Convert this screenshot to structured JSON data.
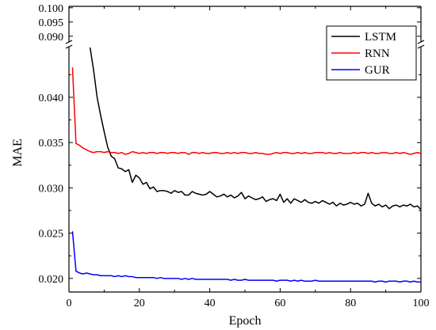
{
  "chart_data": {
    "type": "line",
    "xlabel": "Epoch",
    "ylabel": "MAE",
    "xlim": [
      0,
      100
    ],
    "ylim_lower": [
      0.0185,
      0.0455
    ],
    "ylim_upper": [
      0.088,
      0.1005
    ],
    "axis_break": true,
    "x_ticks": [
      "0",
      "20",
      "40",
      "60",
      "80",
      "100"
    ],
    "y_ticks_lower": [
      "0.020",
      "0.025",
      "0.030",
      "0.035",
      "0.040"
    ],
    "y_ticks_upper": [
      "0.090",
      "0.095",
      "0.100"
    ],
    "legend_position": "top-right",
    "grid": false,
    "series": [
      {
        "name": "LSTM",
        "color": "#000000",
        "x": [
          6,
          7,
          8,
          9,
          10,
          11,
          12,
          13,
          14,
          15,
          16,
          17,
          18,
          19,
          20,
          21,
          22,
          23,
          24,
          25,
          26,
          27,
          28,
          29,
          30,
          31,
          32,
          33,
          34,
          35,
          36,
          37,
          38,
          39,
          40,
          41,
          42,
          43,
          44,
          45,
          46,
          47,
          48,
          49,
          50,
          51,
          52,
          53,
          54,
          55,
          56,
          57,
          58,
          59,
          60,
          61,
          62,
          63,
          64,
          65,
          66,
          67,
          68,
          69,
          70,
          71,
          72,
          73,
          74,
          75,
          76,
          77,
          78,
          79,
          80,
          81,
          82,
          83,
          84,
          85,
          86,
          87,
          88,
          89,
          90,
          91,
          92,
          93,
          94,
          95,
          96,
          97,
          98,
          99,
          100
        ],
        "values": [
          0.0455,
          0.043,
          0.04,
          0.038,
          0.0362,
          0.0345,
          0.0335,
          0.0332,
          0.0322,
          0.0321,
          0.0318,
          0.032,
          0.0306,
          0.0314,
          0.0311,
          0.0304,
          0.0306,
          0.0299,
          0.0301,
          0.0296,
          0.0297,
          0.0297,
          0.0296,
          0.0294,
          0.0297,
          0.0295,
          0.0296,
          0.0292,
          0.0292,
          0.0296,
          0.0294,
          0.0293,
          0.0292,
          0.0293,
          0.0296,
          0.0293,
          0.029,
          0.0291,
          0.0293,
          0.029,
          0.0292,
          0.0289,
          0.0291,
          0.0295,
          0.0288,
          0.0291,
          0.0289,
          0.0287,
          0.0288,
          0.029,
          0.0285,
          0.0287,
          0.0288,
          0.0286,
          0.0293,
          0.0284,
          0.0288,
          0.0283,
          0.0288,
          0.0286,
          0.0284,
          0.0287,
          0.0284,
          0.0283,
          0.0285,
          0.0283,
          0.0286,
          0.0284,
          0.0282,
          0.0284,
          0.028,
          0.0283,
          0.0281,
          0.0282,
          0.0284,
          0.0282,
          0.0283,
          0.028,
          0.0282,
          0.0294,
          0.0283,
          0.028,
          0.0282,
          0.0279,
          0.0281,
          0.0277,
          0.028,
          0.0281,
          0.0279,
          0.0281,
          0.028,
          0.0282,
          0.0279,
          0.028,
          0.0276
        ]
      },
      {
        "name": "RNN",
        "color": "#ff0000",
        "x": [
          1,
          2,
          3,
          4,
          5,
          6,
          7,
          8,
          9,
          10,
          11,
          12,
          13,
          14,
          15,
          16,
          17,
          18,
          19,
          20,
          21,
          22,
          23,
          24,
          25,
          26,
          27,
          28,
          29,
          30,
          31,
          32,
          33,
          34,
          35,
          36,
          37,
          38,
          39,
          40,
          41,
          42,
          43,
          44,
          45,
          46,
          47,
          48,
          49,
          50,
          51,
          52,
          53,
          54,
          55,
          56,
          57,
          58,
          59,
          60,
          61,
          62,
          63,
          64,
          65,
          66,
          67,
          68,
          69,
          70,
          71,
          72,
          73,
          74,
          75,
          76,
          77,
          78,
          79,
          80,
          81,
          82,
          83,
          84,
          85,
          86,
          87,
          88,
          89,
          90,
          91,
          92,
          93,
          94,
          95,
          96,
          97,
          98,
          99,
          100
        ],
        "values": [
          0.0433,
          0.0349,
          0.0347,
          0.0344,
          0.0342,
          0.034,
          0.0339,
          0.034,
          0.034,
          0.0339,
          0.034,
          0.0339,
          0.0339,
          0.0338,
          0.0339,
          0.0337,
          0.0338,
          0.034,
          0.0339,
          0.0338,
          0.0339,
          0.0338,
          0.0339,
          0.0339,
          0.0338,
          0.0339,
          0.0339,
          0.0338,
          0.0339,
          0.0339,
          0.0338,
          0.0339,
          0.0339,
          0.0337,
          0.0339,
          0.0339,
          0.0338,
          0.0339,
          0.0338,
          0.0338,
          0.0339,
          0.0339,
          0.0338,
          0.0338,
          0.0339,
          0.0338,
          0.0339,
          0.0338,
          0.0339,
          0.0339,
          0.0338,
          0.0338,
          0.0339,
          0.0338,
          0.0338,
          0.0337,
          0.0337,
          0.0338,
          0.0339,
          0.0338,
          0.0339,
          0.0339,
          0.0338,
          0.0338,
          0.0339,
          0.0338,
          0.0339,
          0.0338,
          0.0338,
          0.0339,
          0.0339,
          0.0339,
          0.0338,
          0.0339,
          0.0338,
          0.0338,
          0.0339,
          0.0338,
          0.0338,
          0.0338,
          0.0339,
          0.0338,
          0.0339,
          0.0339,
          0.0338,
          0.0339,
          0.0338,
          0.0338,
          0.0339,
          0.0339,
          0.0338,
          0.0338,
          0.0339,
          0.0338,
          0.0339,
          0.0338,
          0.0337,
          0.0338,
          0.0339,
          0.0338
        ]
      },
      {
        "name": "GUR",
        "color": "#0000ff",
        "x": [
          1,
          2,
          3,
          4,
          5,
          6,
          7,
          8,
          9,
          10,
          11,
          12,
          13,
          14,
          15,
          16,
          17,
          18,
          19,
          20,
          21,
          22,
          23,
          24,
          25,
          26,
          27,
          28,
          29,
          30,
          31,
          32,
          33,
          34,
          35,
          36,
          37,
          38,
          39,
          40,
          41,
          42,
          43,
          44,
          45,
          46,
          47,
          48,
          49,
          50,
          51,
          52,
          53,
          54,
          55,
          56,
          57,
          58,
          59,
          60,
          61,
          62,
          63,
          64,
          65,
          66,
          67,
          68,
          69,
          70,
          71,
          72,
          73,
          74,
          75,
          76,
          77,
          78,
          79,
          80,
          81,
          82,
          83,
          84,
          85,
          86,
          87,
          88,
          89,
          90,
          91,
          92,
          93,
          94,
          95,
          96,
          97,
          98,
          99,
          100
        ],
        "values": [
          0.0252,
          0.0208,
          0.0206,
          0.0205,
          0.0206,
          0.0205,
          0.0204,
          0.0204,
          0.0203,
          0.0203,
          0.0203,
          0.0203,
          0.0202,
          0.0203,
          0.0202,
          0.0203,
          0.0202,
          0.0202,
          0.0201,
          0.0201,
          0.0201,
          0.0201,
          0.0201,
          0.0201,
          0.02,
          0.0201,
          0.02,
          0.02,
          0.02,
          0.02,
          0.02,
          0.0199,
          0.02,
          0.0199,
          0.02,
          0.0199,
          0.0199,
          0.0199,
          0.0199,
          0.0199,
          0.0199,
          0.0199,
          0.0199,
          0.0199,
          0.0199,
          0.0198,
          0.0199,
          0.0198,
          0.0198,
          0.0199,
          0.0198,
          0.0198,
          0.0198,
          0.0198,
          0.0198,
          0.0198,
          0.0198,
          0.0198,
          0.0197,
          0.0198,
          0.0198,
          0.0198,
          0.0197,
          0.0198,
          0.0197,
          0.0198,
          0.0197,
          0.0197,
          0.0197,
          0.0198,
          0.0197,
          0.0197,
          0.0197,
          0.0197,
          0.0197,
          0.0197,
          0.0197,
          0.0197,
          0.0197,
          0.0197,
          0.0197,
          0.0197,
          0.0197,
          0.0197,
          0.0197,
          0.0197,
          0.0196,
          0.0197,
          0.0197,
          0.0196,
          0.0197,
          0.0197,
          0.0197,
          0.0196,
          0.0197,
          0.0197,
          0.0196,
          0.0197,
          0.0196,
          0.0196
        ]
      }
    ]
  }
}
